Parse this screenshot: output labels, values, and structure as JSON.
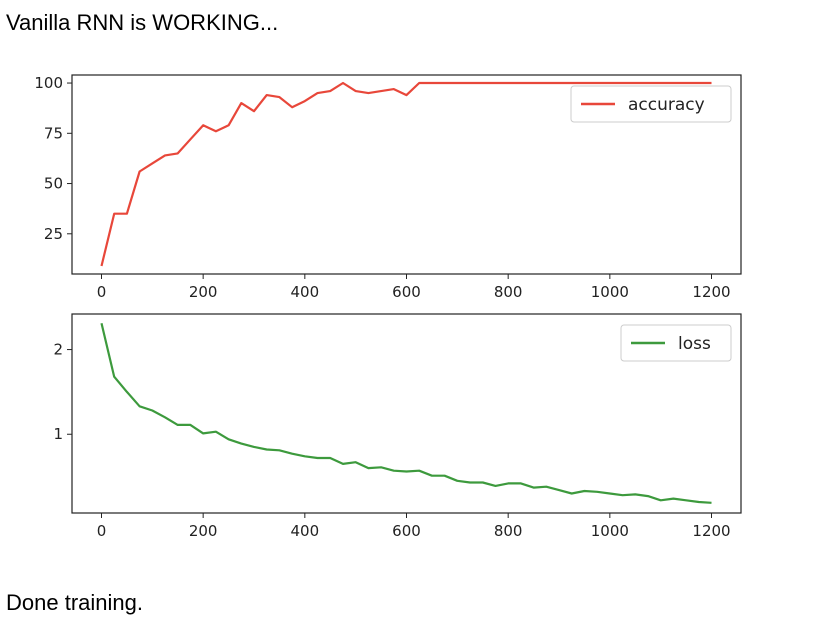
{
  "messages": {
    "start": "Vanilla RNN is WORKING...",
    "end": "Done training."
  },
  "chart_data": [
    {
      "type": "line",
      "series": [
        {
          "name": "accuracy",
          "color": "#e8473a",
          "x": [
            0,
            25,
            50,
            75,
            100,
            125,
            150,
            175,
            200,
            225,
            250,
            275,
            300,
            325,
            350,
            375,
            400,
            425,
            450,
            475,
            500,
            525,
            550,
            575,
            600,
            625,
            650,
            675,
            700,
            725,
            750,
            775,
            800,
            825,
            850,
            875,
            900,
            925,
            950,
            975,
            1000,
            1025,
            1050,
            1075,
            1100,
            1125,
            1150,
            1175,
            1200
          ],
          "y": [
            9,
            35,
            35,
            56,
            60,
            64,
            65,
            72,
            79,
            76,
            79,
            90,
            86,
            94,
            93,
            88,
            91,
            95,
            96,
            100,
            96,
            95,
            96,
            97,
            94,
            100,
            100,
            100,
            100,
            100,
            100,
            100,
            100,
            100,
            100,
            100,
            100,
            100,
            100,
            100,
            100,
            100,
            100,
            100,
            100,
            100,
            100,
            100,
            100
          ]
        }
      ],
      "xticks": [
        0,
        200,
        400,
        600,
        800,
        1000,
        1200
      ],
      "yticks": [
        25,
        50,
        75,
        100
      ],
      "xlim": [
        -58,
        1258
      ],
      "ylim": [
        5,
        104
      ],
      "grid": false,
      "legend": "top-right"
    },
    {
      "type": "line",
      "series": [
        {
          "name": "loss",
          "color": "#3d9a3d",
          "x": [
            0,
            25,
            50,
            75,
            100,
            125,
            150,
            175,
            200,
            225,
            250,
            275,
            300,
            325,
            350,
            375,
            400,
            425,
            450,
            475,
            500,
            525,
            550,
            575,
            600,
            625,
            650,
            675,
            700,
            725,
            750,
            775,
            800,
            825,
            850,
            875,
            900,
            925,
            950,
            975,
            1000,
            1025,
            1050,
            1075,
            1100,
            1125,
            1150,
            1175,
            1200
          ],
          "y": [
            2.31,
            1.68,
            1.5,
            1.33,
            1.28,
            1.2,
            1.11,
            1.11,
            1.01,
            1.03,
            0.94,
            0.89,
            0.85,
            0.82,
            0.81,
            0.77,
            0.74,
            0.72,
            0.72,
            0.65,
            0.67,
            0.6,
            0.61,
            0.57,
            0.56,
            0.57,
            0.51,
            0.51,
            0.45,
            0.43,
            0.43,
            0.39,
            0.42,
            0.42,
            0.37,
            0.38,
            0.34,
            0.3,
            0.33,
            0.32,
            0.3,
            0.28,
            0.29,
            0.27,
            0.22,
            0.24,
            0.22,
            0.2,
            0.19
          ]
        }
      ],
      "xticks": [
        0,
        200,
        400,
        600,
        800,
        1000,
        1200
      ],
      "yticks": [
        1,
        2
      ],
      "xlim": [
        -58,
        1258
      ],
      "ylim": [
        0.07,
        2.42
      ],
      "grid": false,
      "legend": "top-right"
    }
  ]
}
